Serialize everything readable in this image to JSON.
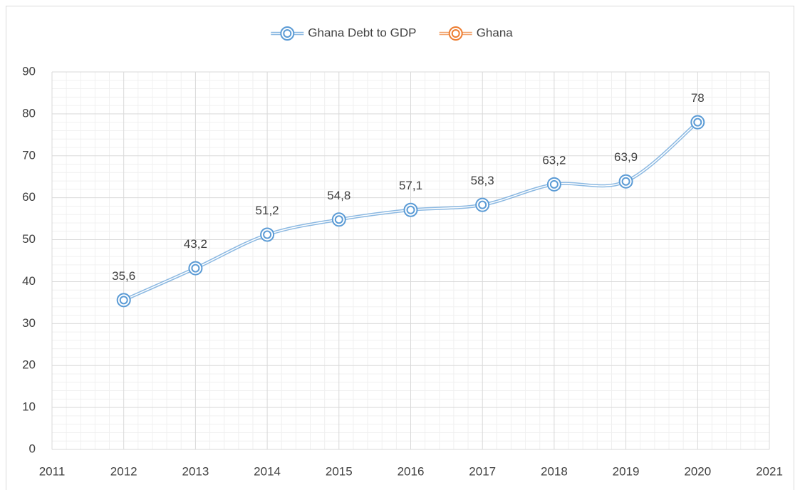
{
  "chart_data": {
    "type": "line",
    "x": [
      2012,
      2013,
      2014,
      2015,
      2016,
      2017,
      2018,
      2019,
      2020
    ],
    "series": [
      {
        "name": "Ghana Debt to GDP",
        "color": "#5b9bd5",
        "values": [
          35.6,
          43.2,
          51.2,
          54.8,
          57.1,
          58.3,
          63.2,
          63.9,
          78
        ],
        "value_labels": [
          "35,6",
          "43,2",
          "51,2",
          "54,8",
          "57,1",
          "58,3",
          "63,2",
          "63,9",
          "78"
        ]
      },
      {
        "name": "Ghana",
        "color": "#ed7d31",
        "values": [
          null,
          null,
          null,
          null,
          null,
          null,
          null,
          null,
          null
        ]
      }
    ],
    "xlim": [
      2011,
      2021
    ],
    "xticks": [
      2011,
      2012,
      2013,
      2014,
      2015,
      2016,
      2017,
      2018,
      2019,
      2020,
      2021
    ],
    "ylim": [
      0,
      90
    ],
    "yticks": [
      0,
      10,
      20,
      30,
      40,
      50,
      60,
      70,
      80,
      90
    ],
    "grid": true,
    "legend": "top"
  }
}
